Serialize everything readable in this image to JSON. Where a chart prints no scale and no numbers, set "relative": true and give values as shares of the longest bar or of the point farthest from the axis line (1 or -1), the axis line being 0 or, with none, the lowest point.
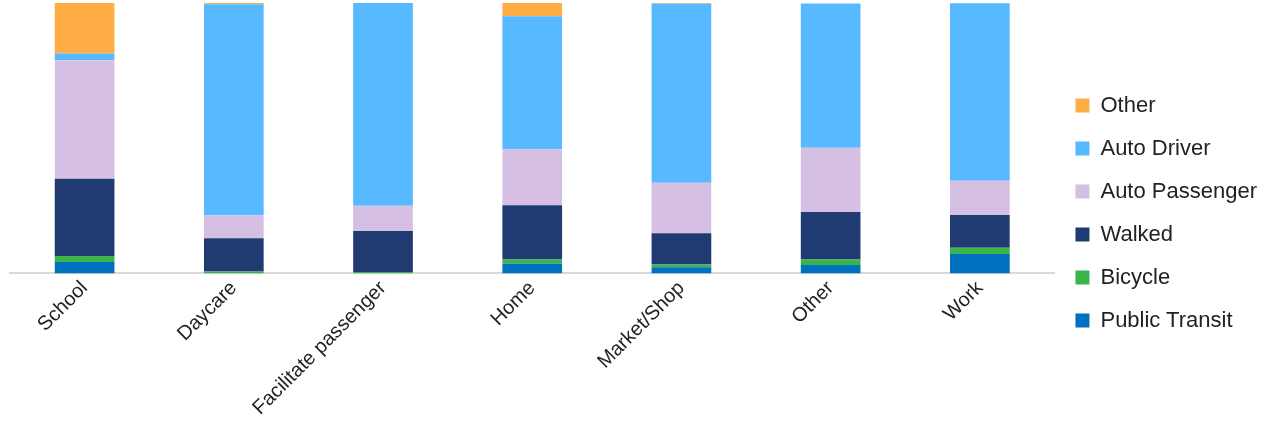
{
  "chart_data": {
    "type": "bar",
    "stacked": true,
    "relative": true,
    "legend": "right",
    "grid": false,
    "categories": [
      "School",
      "Daycare",
      "Facilitate passenger",
      "Home",
      "Market/Shop",
      "Other",
      "Work"
    ],
    "series": [
      {
        "name": "Public Transit",
        "color": "#0070c0",
        "values": [
          0.042,
          0,
          0,
          0.036,
          0.023,
          0.031,
          0.072
        ]
      },
      {
        "name": "Bicycle",
        "color": "#3bb54a",
        "values": [
          0.023,
          0.007,
          0.005,
          0.016,
          0.01,
          0.021,
          0.023
        ]
      },
      {
        "name": "Walked",
        "color": "#203a72",
        "values": [
          0.285,
          0.123,
          0.152,
          0.2,
          0.116,
          0.175,
          0.121
        ]
      },
      {
        "name": "Auto Passenger",
        "color": "#d5c0e3",
        "values": [
          0.438,
          0.085,
          0.093,
          0.207,
          0.186,
          0.238,
          0.127
        ]
      },
      {
        "name": "Auto Driver",
        "color": "#57b9ff",
        "values": [
          0.025,
          0.78,
          0.75,
          0.492,
          0.662,
          0.533,
          0.656
        ]
      },
      {
        "name": "Other",
        "color": "#ffae45",
        "values": [
          0.187,
          0.005,
          0,
          0.049,
          0.003,
          null,
          null
        ]
      }
    ]
  }
}
